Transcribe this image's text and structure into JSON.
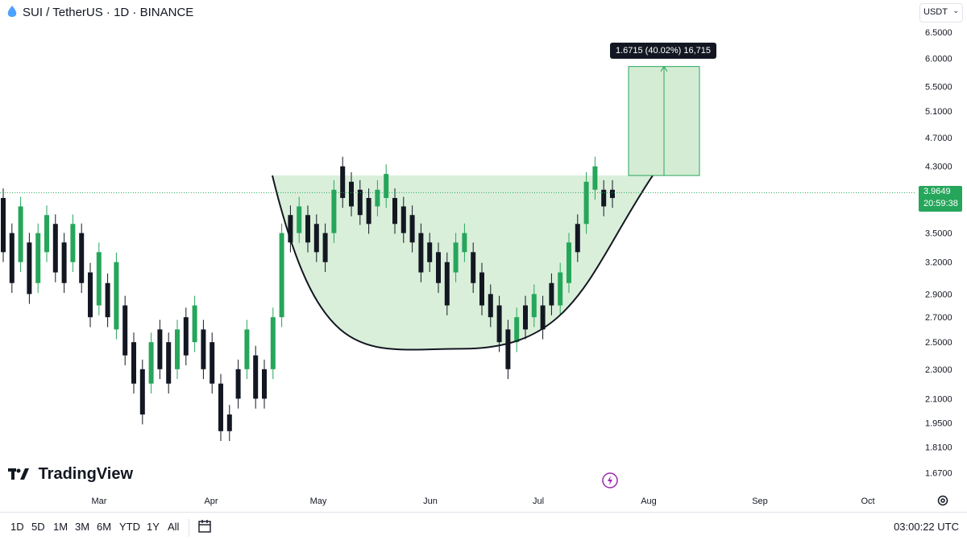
{
  "header": {
    "symbol_title": "SUI / TetherUS · 1D · BINANCE",
    "currency": "USDT",
    "logo_icon": "sui-logo-icon",
    "chevron_icon": "chevron-down-icon"
  },
  "price_badge": {
    "price": "3.9649",
    "countdown": "20:59:38"
  },
  "measure_label": "1.6715 (40.02%) 16,715",
  "watermark": "TradingView",
  "bottom_bar": {
    "ranges": [
      "1D",
      "5D",
      "1M",
      "3M",
      "6M",
      "YTD",
      "1Y",
      "All"
    ],
    "time": "03:00:22 UTC",
    "compare_icon": "calendar-range-icon"
  },
  "colors": {
    "up": "#26a65b",
    "down": "#131722",
    "zone": "#d4ecd4",
    "badge": "#26a65b"
  },
  "chart_data": {
    "type": "candlestick",
    "ylim": [
      1.6,
      6.7
    ],
    "y_scale": "log",
    "y_ticks": [
      6.5,
      6.0,
      5.5,
      5.1,
      4.7,
      4.3,
      3.5,
      3.2,
      2.9,
      2.7,
      2.5,
      2.3,
      2.1,
      1.95,
      1.81,
      1.67
    ],
    "y_tick_labels": [
      "6.5000",
      "6.0000",
      "5.5000",
      "5.1000",
      "4.7000",
      "4.3000",
      "3.5000",
      "3.2000",
      "2.9000",
      "2.7000",
      "2.5000",
      "2.3000",
      "2.1000",
      "1.9500",
      "1.8100",
      "1.6700"
    ],
    "x_labels": [
      "Mar",
      "Apr",
      "May",
      "Jun",
      "Jul",
      "Aug",
      "Sep",
      "Oct"
    ],
    "last_price": 3.9649,
    "measure": {
      "from": 4.18,
      "to": 5.85,
      "change": "1.6715 (40.02%) 16,715"
    },
    "rim_level": 4.18,
    "grid": false,
    "candles_approx": [
      [
        3.9,
        3.3
      ],
      [
        3.5,
        3.0
      ],
      [
        3.8,
        3.2
      ],
      [
        3.4,
        2.9
      ],
      [
        3.5,
        3.0
      ],
      [
        3.7,
        3.3
      ],
      [
        3.6,
        3.1
      ],
      [
        3.4,
        3.0
      ],
      [
        3.6,
        3.2
      ],
      [
        3.5,
        3.0
      ],
      [
        3.1,
        2.7
      ],
      [
        3.3,
        2.8
      ],
      [
        3.0,
        2.7
      ],
      [
        3.2,
        2.6
      ],
      [
        2.8,
        2.4
      ],
      [
        2.5,
        2.2
      ],
      [
        2.3,
        2.0
      ],
      [
        2.5,
        2.2
      ],
      [
        2.6,
        2.3
      ],
      [
        2.5,
        2.2
      ],
      [
        2.6,
        2.3
      ],
      [
        2.7,
        2.4
      ],
      [
        2.8,
        2.5
      ],
      [
        2.6,
        2.3
      ],
      [
        2.5,
        2.2
      ],
      [
        2.2,
        1.9
      ],
      [
        2.0,
        1.9
      ],
      [
        2.3,
        2.1
      ],
      [
        2.6,
        2.3
      ],
      [
        2.4,
        2.1
      ],
      [
        2.3,
        2.1
      ],
      [
        2.7,
        2.3
      ],
      [
        3.5,
        2.7
      ],
      [
        3.7,
        3.4
      ],
      [
        3.8,
        3.5
      ],
      [
        3.7,
        3.4
      ],
      [
        3.6,
        3.3
      ],
      [
        3.5,
        3.2
      ],
      [
        4.0,
        3.5
      ],
      [
        4.3,
        3.9
      ],
      [
        4.1,
        3.8
      ],
      [
        4.0,
        3.7
      ],
      [
        3.9,
        3.6
      ],
      [
        4.0,
        3.8
      ],
      [
        4.2,
        3.9
      ],
      [
        3.9,
        3.6
      ],
      [
        3.8,
        3.5
      ],
      [
        3.7,
        3.4
      ],
      [
        3.5,
        3.1
      ],
      [
        3.4,
        3.2
      ],
      [
        3.3,
        3.0
      ],
      [
        3.2,
        2.8
      ],
      [
        3.4,
        3.1
      ],
      [
        3.5,
        3.3
      ],
      [
        3.3,
        3.0
      ],
      [
        3.1,
        2.8
      ],
      [
        2.9,
        2.7
      ],
      [
        2.8,
        2.5
      ],
      [
        2.6,
        2.3
      ],
      [
        2.7,
        2.5
      ],
      [
        2.8,
        2.6
      ],
      [
        2.9,
        2.7
      ],
      [
        2.8,
        2.6
      ],
      [
        3.0,
        2.8
      ],
      [
        3.1,
        2.8
      ],
      [
        3.4,
        3.0
      ],
      [
        3.6,
        3.3
      ],
      [
        4.1,
        3.6
      ],
      [
        4.3,
        4.0
      ],
      [
        4.0,
        3.8
      ],
      [
        4.0,
        3.9
      ]
    ]
  }
}
